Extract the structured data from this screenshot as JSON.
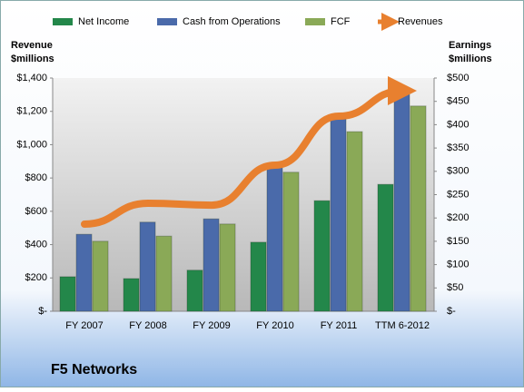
{
  "chart_data": {
    "type": "bar",
    "title": "F5 Networks",
    "ylabel": [
      "Revenue",
      "$millions"
    ],
    "y2label": [
      "Earnings",
      "$millions"
    ],
    "categories": [
      "FY 2007",
      "FY 2008",
      "FY 2009",
      "FY 2010",
      "FY 2011",
      "TTM 6-2012"
    ],
    "series": [
      {
        "name": "Net Income",
        "color": "#23874a",
        "type": "bar",
        "axis": "y2",
        "values": [
          74,
          70,
          88,
          148,
          237,
          272
        ]
      },
      {
        "name": "Cash from Operations",
        "color": "#4a6aaa",
        "type": "bar",
        "axis": "y2",
        "values": [
          165,
          191,
          198,
          313,
          418,
          471
        ]
      },
      {
        "name": "FCF",
        "color": "#8aa957",
        "type": "bar",
        "axis": "y2",
        "values": [
          150,
          161,
          187,
          298,
          385,
          440
        ]
      },
      {
        "name": "Revenues",
        "color": "#e8802f",
        "type": "line",
        "values": [
          523,
          648,
          637,
          877,
          1171,
          1324
        ]
      }
    ],
    "ylim": [
      0,
      1400
    ],
    "yticks": [
      {
        "value": 0,
        "label": "$-"
      },
      {
        "value": 200,
        "label": "$200"
      },
      {
        "value": 400,
        "label": "$400"
      },
      {
        "value": 600,
        "label": "$600"
      },
      {
        "value": 800,
        "label": "$800"
      },
      {
        "value": 1000,
        "label": "$1,000"
      },
      {
        "value": 1200,
        "label": "$1,200"
      },
      {
        "value": 1400,
        "label": "$1,400"
      }
    ],
    "y2lim": [
      0,
      500
    ],
    "y2ticks": [
      {
        "value": 0,
        "label": "$-"
      },
      {
        "value": 50,
        "label": "$50"
      },
      {
        "value": 100,
        "label": "$100"
      },
      {
        "value": 150,
        "label": "$150"
      },
      {
        "value": 200,
        "label": "$200"
      },
      {
        "value": 250,
        "label": "$250"
      },
      {
        "value": 300,
        "label": "$300"
      },
      {
        "value": 350,
        "label": "$350"
      },
      {
        "value": 400,
        "label": "$400"
      },
      {
        "value": 450,
        "label": "$450"
      },
      {
        "value": 500,
        "label": "$500"
      }
    ],
    "legend": "top",
    "grid": false
  }
}
